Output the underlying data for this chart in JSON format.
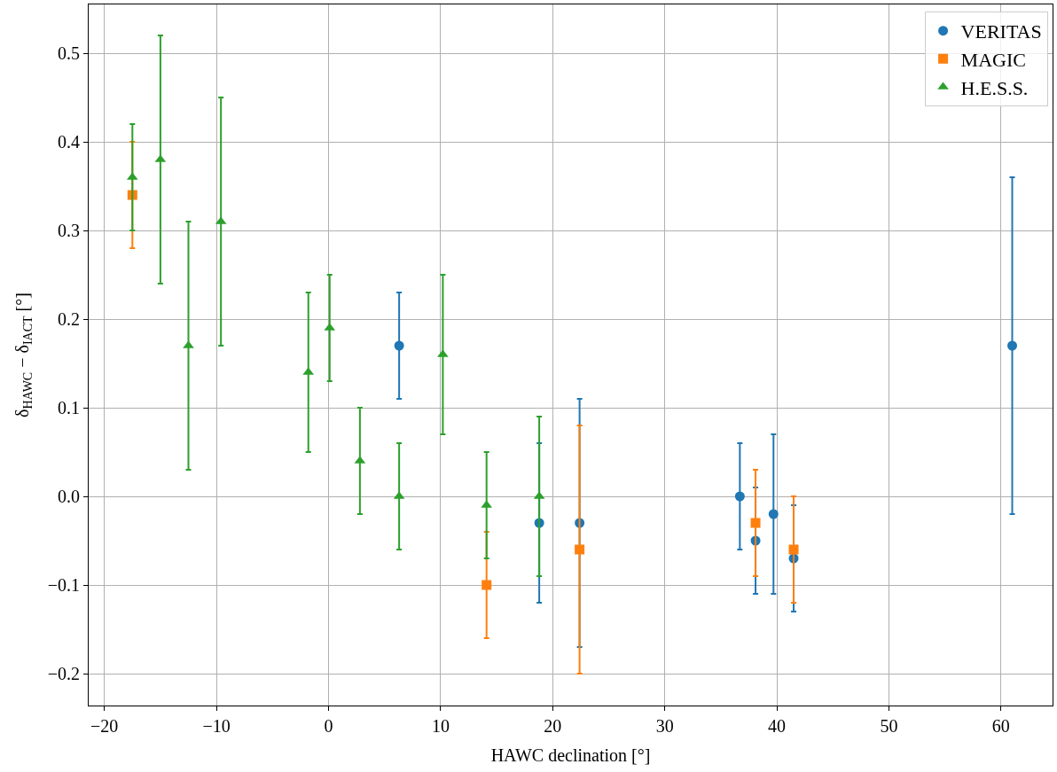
{
  "chart_data": {
    "type": "scatter",
    "xlabel": "HAWC declination [°]",
    "ylabel": "δ$_{HAWC}$ − δ$_{IACT}$ [°]",
    "xlim": [
      -21.4,
      64.6
    ],
    "xticks": [
      {
        "value": -20,
        "label": "−20"
      },
      {
        "value": -10,
        "label": "−10"
      },
      0,
      10,
      20,
      30,
      40,
      50,
      60
    ],
    "ylim": [
      -0.236,
      0.555
    ],
    "yticks": [
      {
        "value": -0.2,
        "label": "−0.2"
      },
      {
        "value": -0.1,
        "label": "−0.1"
      },
      {
        "value": 0,
        "label": "0.0"
      },
      0.1,
      0.2,
      0.3,
      0.4,
      0.5
    ],
    "grid": true,
    "legend": "top right",
    "series": [
      {
        "name": "VERITAS",
        "color": "#1f77b4",
        "marker": "circle",
        "x": [
          6.3,
          18.8,
          22.4,
          36.7,
          38.1,
          39.7,
          41.5,
          61.0
        ],
        "values": [
          0.17,
          -0.03,
          -0.03,
          0.0,
          -0.05,
          -0.02,
          -0.07,
          0.17
        ],
        "errors": [
          0.06,
          0.09,
          0.14,
          0.06,
          0.06,
          0.09,
          0.06,
          0.19
        ]
      },
      {
        "name": "MAGIC",
        "color": "#ff7f0e",
        "marker": "square",
        "x": [
          -17.5,
          14.1,
          22.4,
          38.1,
          41.5
        ],
        "values": [
          0.34,
          -0.1,
          -0.06,
          -0.03,
          -0.06
        ],
        "errors": [
          0.06,
          0.06,
          0.14,
          0.06,
          0.06
        ]
      },
      {
        "name": "H.E.S.S.",
        "color": "#2ca02c",
        "marker": "triangle",
        "x": [
          -17.5,
          -15.0,
          -12.5,
          -9.6,
          -1.8,
          0.1,
          2.8,
          6.3,
          10.2,
          14.1,
          18.8
        ],
        "values": [
          0.36,
          0.38,
          0.17,
          0.31,
          0.14,
          0.19,
          0.04,
          0.0,
          0.16,
          -0.01,
          0.0
        ],
        "errors": [
          0.06,
          0.14,
          0.14,
          0.14,
          0.09,
          0.06,
          0.06,
          0.06,
          0.09,
          0.06,
          0.09
        ]
      }
    ]
  }
}
